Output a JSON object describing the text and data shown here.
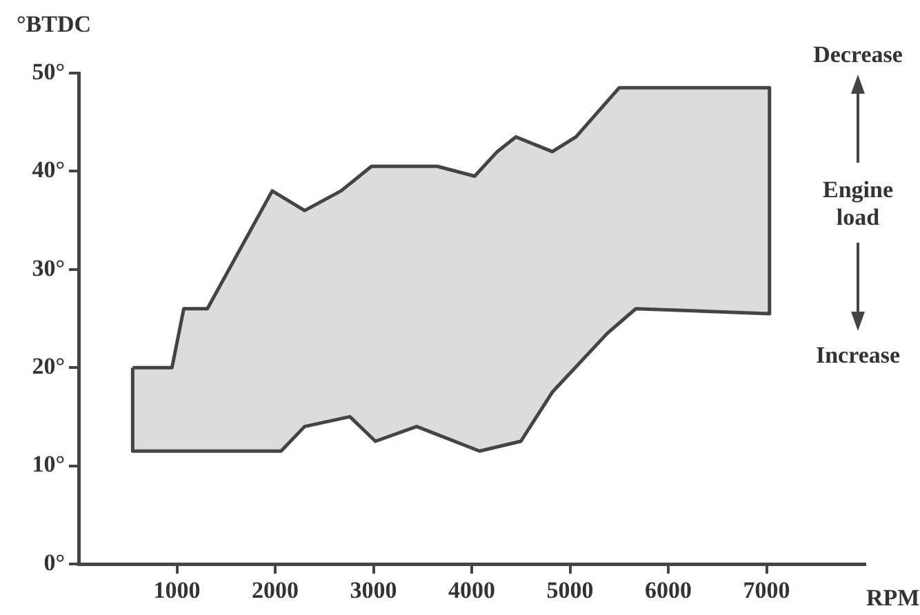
{
  "chart_data": {
    "type": "area",
    "ylabel": "°BTDC",
    "xlabel": "RPM",
    "xlim": [
      0,
      8000
    ],
    "xticks": [
      1000,
      2000,
      3000,
      4000,
      5000,
      6000,
      7000
    ],
    "ylim": [
      0,
      50
    ],
    "yticks": [
      {
        "value": 0,
        "label": "0°"
      },
      {
        "value": 10,
        "label": "10°"
      },
      {
        "value": 20,
        "label": "20°"
      },
      {
        "value": 30,
        "label": "30°"
      },
      {
        "value": 40,
        "label": "40°"
      },
      {
        "value": 50,
        "label": "50°"
      }
    ],
    "series": [
      {
        "color": "#444444",
        "x": [
          550,
          950,
          1070,
          1310,
          1970,
          2300,
          2670,
          2980,
          3330,
          3650,
          4030,
          4260,
          4450,
          4820,
          5060,
          5500,
          7030,
          7030,
          5670,
          5380,
          4820,
          4500,
          4080,
          3440,
          3020,
          2760,
          2300,
          2060,
          560,
          550
        ],
        "values": [
          20,
          20,
          26,
          26,
          38,
          36,
          38,
          40.5,
          40.5,
          40.5,
          39.5,
          42,
          43.5,
          42,
          43.5,
          48.5,
          48.5,
          25.5,
          26,
          23.5,
          17.5,
          12.5,
          11.5,
          14,
          12.5,
          15,
          14,
          11.5,
          11.5,
          20
        ]
      }
    ],
    "annotations": [
      "Decrease",
      "Engine load",
      "Increase"
    ],
    "grid": false,
    "legend": false,
    "marker": "none",
    "line_style": "solid"
  }
}
